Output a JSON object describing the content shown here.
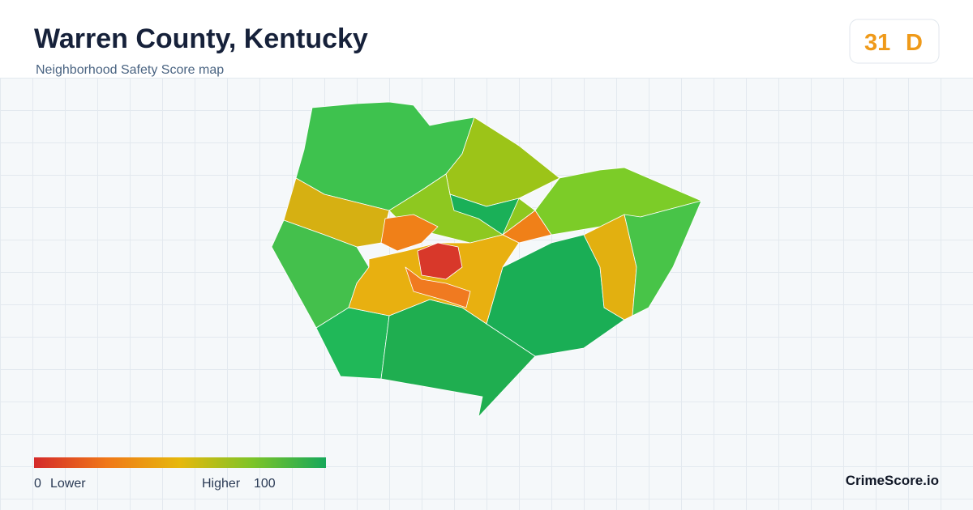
{
  "header": {
    "title": "Warren County, Kentucky",
    "subtitle": "Neighborhood Safety Score map"
  },
  "badge": {
    "score": 31,
    "grade": "D"
  },
  "legend": {
    "min": 0,
    "min_label": "Lower",
    "max_label": "Higher",
    "max": 100
  },
  "footer": {
    "brand": "CrimeScore.io"
  }
}
